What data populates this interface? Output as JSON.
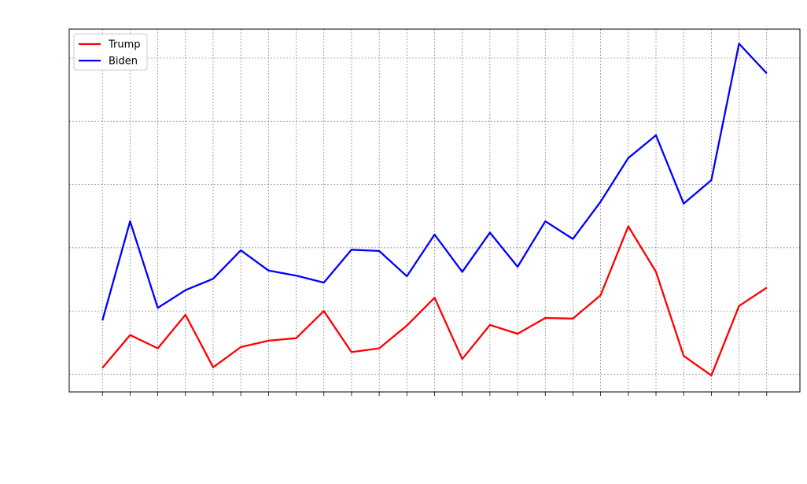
{
  "chart_data": {
    "type": "line",
    "title": "",
    "xlabel": "",
    "ylabel": "",
    "x": [
      1,
      2,
      3,
      4,
      5,
      6,
      7,
      8,
      9,
      10,
      11,
      12,
      13,
      14,
      15,
      16,
      17,
      18,
      19,
      20,
      21,
      22,
      23,
      24,
      25
    ],
    "ylim": [
      -0.28,
      5.46
    ],
    "grid": true,
    "legend_position": "upper-left",
    "series": [
      {
        "name": "Trump",
        "color": "#ff0000",
        "values": [
          0.1,
          0.62,
          0.41,
          0.94,
          0.11,
          0.43,
          0.53,
          0.57,
          1.0,
          0.35,
          0.41,
          0.77,
          1.21,
          0.24,
          0.78,
          0.64,
          0.89,
          0.88,
          1.25,
          2.34,
          1.62,
          0.29,
          -0.02,
          1.08,
          1.37
        ]
      },
      {
        "name": "Biden",
        "color": "#0000ff",
        "values": [
          0.85,
          2.42,
          1.05,
          1.33,
          1.51,
          1.96,
          1.64,
          1.56,
          1.45,
          1.97,
          1.95,
          1.55,
          2.21,
          1.62,
          2.24,
          1.7,
          2.42,
          2.14,
          2.73,
          3.42,
          3.78,
          2.7,
          3.07,
          5.23,
          4.76
        ]
      }
    ]
  }
}
